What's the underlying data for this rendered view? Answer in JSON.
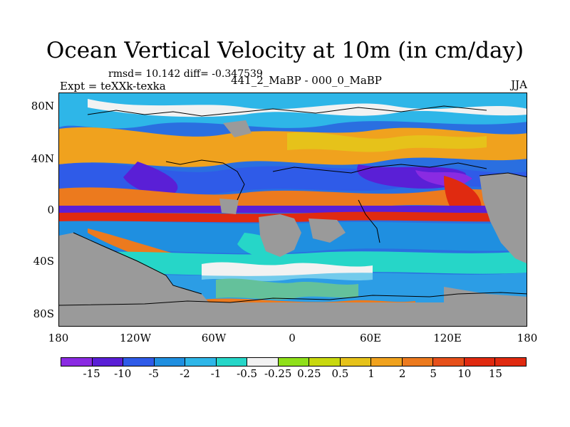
{
  "title": "Ocean Vertical Velocity at 10m (in cm/day)",
  "stats": "rmsd= 10.142 diff= -0.347539",
  "expt": "Expt = teXXk-texka",
  "center_label": "441_2_MaBP - 000_0_MaBP",
  "season": "JJA",
  "lat_labels": [
    "80N",
    "40N",
    "0",
    "40S",
    "80S"
  ],
  "lon_labels": [
    "180",
    "120W",
    "60W",
    "0",
    "60E",
    "120E",
    "180"
  ],
  "colorbar": {
    "colors": [
      "#8a2be2",
      "#5a1fd6",
      "#2f5be8",
      "#1f8fe0",
      "#2eb6e8",
      "#26d6c8",
      "#f2f2f2",
      "#8fe01a",
      "#c8d80e",
      "#e6c21a",
      "#f0a21e",
      "#ec7a1e",
      "#e6501a",
      "#e02a10"
    ],
    "labels": [
      "-15",
      "-10",
      "-5",
      "-2",
      "-1",
      "-0.5",
      "-0.25",
      "0.25",
      "0.5",
      "1",
      "2",
      "5",
      "10",
      "15"
    ]
  },
  "land_color": "#9a9a9a"
}
